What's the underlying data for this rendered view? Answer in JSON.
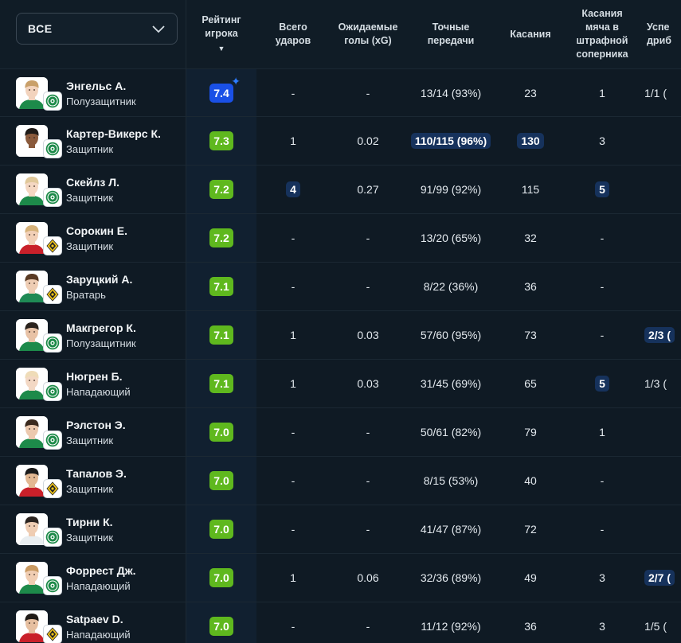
{
  "filter": {
    "label": "ВСЕ"
  },
  "columns": [
    {
      "key": "rating",
      "label": "Рейтинг\nигрока",
      "sorted": true
    },
    {
      "key": "shots",
      "label": "Всего\nударов"
    },
    {
      "key": "xg",
      "label": "Ожидаемые\nголы (xG)"
    },
    {
      "key": "passes",
      "label": "Точные\nпередачи"
    },
    {
      "key": "touches",
      "label": "Касания"
    },
    {
      "key": "box_touches",
      "label": "Касания\nмяча в\nштрафной\nсоперника"
    },
    {
      "key": "dribbles",
      "label": "Успе\nдриб"
    }
  ],
  "sort_arrow": "▼",
  "colors": {
    "rating_green": "#5fb81e",
    "rating_blue": "#1a50e6",
    "highlight": "#16325c",
    "background": "#0f1a24"
  },
  "players": [
    {
      "name": "Энгельс А.",
      "position": "Полузащитник",
      "club_icon": "celtic-crest",
      "rating": "7.4",
      "top": true,
      "shots": "-",
      "xg": "-",
      "passes": "13/14 (93%)",
      "touches": "23",
      "box_touches": "1",
      "dribbles": "1/1 (",
      "hl": []
    },
    {
      "name": "Картер-Викерс К.",
      "position": "Защитник",
      "club_icon": "celtic-crest",
      "rating": "7.3",
      "shots": "1",
      "xg": "0.02",
      "passes": "110/115 (96%)",
      "touches": "130",
      "box_touches": "3",
      "dribbles": "",
      "hl": [
        "passes",
        "touches"
      ]
    },
    {
      "name": "Скейлз Л.",
      "position": "Защитник",
      "club_icon": "celtic-crest",
      "rating": "7.2",
      "shots": "4",
      "xg": "0.27",
      "passes": "91/99 (92%)",
      "touches": "115",
      "box_touches": "5",
      "dribbles": "",
      "hl": [
        "shots",
        "box_touches"
      ]
    },
    {
      "name": "Сорокин Е.",
      "position": "Защитник",
      "club_icon": "kairat-crest",
      "rating": "7.2",
      "shots": "-",
      "xg": "-",
      "passes": "13/20 (65%)",
      "touches": "32",
      "box_touches": "-",
      "dribbles": "",
      "hl": []
    },
    {
      "name": "Заруцкий А.",
      "position": "Вратарь",
      "club_icon": "kairat-crest",
      "rating": "7.1",
      "shots": "-",
      "xg": "-",
      "passes": "8/22 (36%)",
      "touches": "36",
      "box_touches": "-",
      "dribbles": "",
      "hl": []
    },
    {
      "name": "Макгрегор К.",
      "position": "Полузащитник",
      "club_icon": "celtic-crest",
      "rating": "7.1",
      "shots": "1",
      "xg": "0.03",
      "passes": "57/60 (95%)",
      "touches": "73",
      "box_touches": "-",
      "dribbles": "2/3 (",
      "hl": [
        "dribbles"
      ]
    },
    {
      "name": "Нюгрен Б.",
      "position": "Нападающий",
      "club_icon": "celtic-crest",
      "rating": "7.1",
      "shots": "1",
      "xg": "0.03",
      "passes": "31/45 (69%)",
      "touches": "65",
      "box_touches": "5",
      "dribbles": "1/3 (",
      "hl": [
        "box_touches"
      ]
    },
    {
      "name": "Рэлстон Э.",
      "position": "Защитник",
      "club_icon": "celtic-crest",
      "rating": "7.0",
      "shots": "-",
      "xg": "-",
      "passes": "50/61 (82%)",
      "touches": "79",
      "box_touches": "1",
      "dribbles": "",
      "hl": []
    },
    {
      "name": "Тапалов Э.",
      "position": "Защитник",
      "club_icon": "kairat-crest",
      "rating": "7.0",
      "shots": "-",
      "xg": "-",
      "passes": "8/15 (53%)",
      "touches": "40",
      "box_touches": "-",
      "dribbles": "",
      "hl": []
    },
    {
      "name": "Тирни К.",
      "position": "Защитник",
      "club_icon": "celtic-crest",
      "rating": "7.0",
      "shots": "-",
      "xg": "-",
      "passes": "41/47 (87%)",
      "touches": "72",
      "box_touches": "-",
      "dribbles": "",
      "hl": []
    },
    {
      "name": "Форрест Дж.",
      "position": "Нападающий",
      "club_icon": "celtic-crest",
      "rating": "7.0",
      "shots": "1",
      "xg": "0.06",
      "passes": "32/36 (89%)",
      "touches": "49",
      "box_touches": "3",
      "dribbles": "2/7 (",
      "hl": [
        "dribbles"
      ]
    },
    {
      "name": "Satpaev D.",
      "position": "Нападающий",
      "club_icon": "kairat-crest",
      "rating": "7.0",
      "shots": "-",
      "xg": "-",
      "passes": "11/12 (92%)",
      "touches": "36",
      "box_touches": "3",
      "dribbles": "1/5 (",
      "hl": []
    }
  ]
}
